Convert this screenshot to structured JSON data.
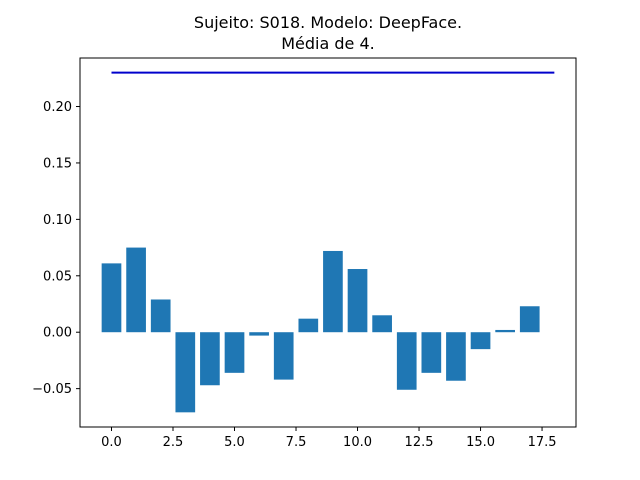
{
  "chart_data": {
    "type": "bar",
    "title_lines": [
      "Sujeito: S018. Modelo: DeepFace.",
      "Média de 4."
    ],
    "xlabel": "",
    "ylabel": "",
    "x": [
      0,
      1,
      2,
      3,
      4,
      5,
      6,
      7,
      8,
      9,
      10,
      11,
      12,
      13,
      14,
      15,
      16,
      17
    ],
    "values": [
      0.061,
      0.075,
      0.029,
      -0.071,
      -0.047,
      -0.036,
      -0.003,
      -0.042,
      0.012,
      0.072,
      0.056,
      0.015,
      -0.051,
      -0.036,
      -0.043,
      -0.015,
      0.002,
      0.023
    ],
    "bar_color": "#1f77b4",
    "reference_line": {
      "y": 0.23,
      "x_start": 0,
      "x_end": 18,
      "color": "#0000cc"
    },
    "xlim": [
      -1.28,
      18.88
    ],
    "ylim": [
      -0.084,
      0.243
    ],
    "xticks": [
      0,
      2.5,
      5,
      7.5,
      10,
      12.5,
      15,
      17.5
    ],
    "xtick_labels": [
      "0.0",
      "2.5",
      "5.0",
      "7.5",
      "10.0",
      "12.5",
      "15.0",
      "17.5"
    ],
    "yticks": [
      -0.05,
      0,
      0.05,
      0.1,
      0.15,
      0.2
    ],
    "ytick_labels": [
      "−0.05",
      "0.00",
      "0.05",
      "0.10",
      "0.15",
      "0.20"
    ],
    "grid": false,
    "legend": "none"
  }
}
